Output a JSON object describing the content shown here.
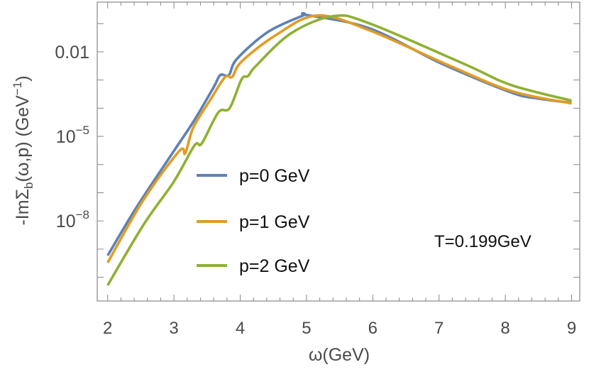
{
  "chart_data": {
    "type": "line",
    "title": "",
    "xlabel": "ω(GeV)",
    "ylabel_parts": {
      "prefix": "-ImΣ",
      "sub": "b",
      "middle": "(ω,p) (GeV",
      "sup": "−1",
      "suffix": ")"
    },
    "xlim": [
      2,
      9
    ],
    "ylim": [
      6e-12,
      0.6
    ],
    "yscale": "log",
    "xticks": [
      "2",
      "3",
      "4",
      "5",
      "6",
      "7",
      "8",
      "9"
    ],
    "yticks": [
      {
        "value": 0.01,
        "label": "0.01"
      },
      {
        "value": 1e-05,
        "base": "10",
        "exp": "−5"
      },
      {
        "value": 1e-08,
        "base": "10",
        "exp": "−8"
      }
    ],
    "grid": false,
    "legend_placement": "center-left",
    "annotation": "T=0.199GeV",
    "series": [
      {
        "name": "p=0 GeV",
        "color": "#5E81B5",
        "points": [
          [
            2.0,
            5.9e-10
          ],
          [
            2.43,
            2.9e-08
          ],
          [
            2.98,
            2.6e-06
          ],
          [
            3.3,
            3.5e-05
          ],
          [
            3.6,
            0.00056
          ],
          [
            3.7,
            0.0015
          ],
          [
            3.83,
            0.0015
          ],
          [
            3.95,
            0.0056
          ],
          [
            4.42,
            0.051
          ],
          [
            4.95,
            0.195
          ],
          [
            5.0,
            0.204
          ],
          [
            5.95,
            0.068
          ],
          [
            7.05,
            0.0037
          ],
          [
            8.09,
            0.00036
          ],
          [
            8.5,
            0.00022
          ],
          [
            9.0,
            0.000155
          ]
        ]
      },
      {
        "name": "p=1 GeV",
        "color": "#E19C24",
        "points": [
          [
            2.0,
            3.3e-10
          ],
          [
            2.53,
            5.1e-08
          ],
          [
            3.08,
            3e-06
          ],
          [
            3.17,
            2.5e-06
          ],
          [
            3.29,
            2e-05
          ],
          [
            3.55,
            0.0002
          ],
          [
            3.77,
            0.00126
          ],
          [
            3.88,
            0.0013
          ],
          [
            4.02,
            0.0045
          ],
          [
            4.53,
            0.038
          ],
          [
            5.16,
            0.195
          ],
          [
            5.95,
            0.058
          ],
          [
            7.16,
            0.0032
          ],
          [
            8.1,
            0.0004
          ],
          [
            9.0,
            0.000148
          ]
        ]
      },
      {
        "name": "p=2 GeV",
        "color": "#8FB032",
        "points": [
          [
            2.0,
            5.2e-11
          ],
          [
            2.55,
            7.9e-09
          ],
          [
            3.0,
            2.5e-07
          ],
          [
            3.31,
            4.8e-06
          ],
          [
            3.42,
            5.6e-06
          ],
          [
            3.67,
            7.1e-05
          ],
          [
            3.84,
            0.0001
          ],
          [
            4.02,
            0.00105
          ],
          [
            4.12,
            0.0014
          ],
          [
            4.24,
            0.0032
          ],
          [
            4.77,
            0.046
          ],
          [
            5.41,
            0.186
          ],
          [
            5.95,
            0.102
          ],
          [
            7.38,
            0.0037
          ],
          [
            8.09,
            0.00066
          ],
          [
            9.0,
            0.000186
          ]
        ]
      }
    ]
  }
}
